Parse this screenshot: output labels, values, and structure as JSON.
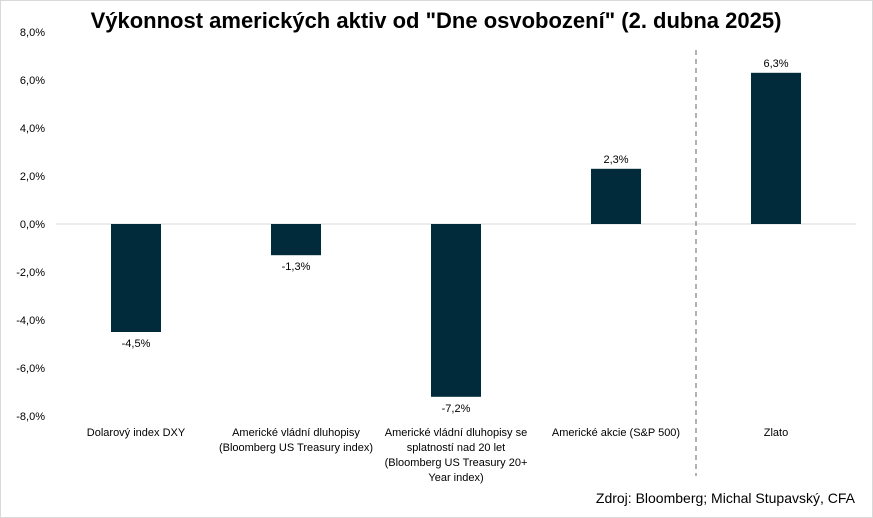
{
  "chart_data": {
    "type": "bar",
    "title": "Výkonnost amerických aktiv od \"Dne osvobození\" (2. dubna 2025)",
    "categories": [
      [
        "Dolarový index DXY"
      ],
      [
        "Americké vládní dluhopisy",
        "(Bloomberg US Treasury index)"
      ],
      [
        "Americké vládní dluhopisy se",
        "splatností nad 20 let",
        "(Bloomberg US Treasury 20+",
        "Year index)"
      ],
      [
        "Americké akcie (S&P 500)"
      ],
      [
        "Zlato"
      ]
    ],
    "values": [
      -4.5,
      -1.3,
      -7.2,
      2.3,
      6.3
    ],
    "value_labels": [
      "-4,5%",
      "-1,3%",
      "-7,2%",
      "2,3%",
      "6,3%"
    ],
    "ylim": [
      -8,
      8
    ],
    "yticks": [
      8,
      6,
      4,
      2,
      0,
      -2,
      -4,
      -6,
      -8
    ],
    "ytick_labels": [
      "8,0%",
      "6,0%",
      "4,0%",
      "2,0%",
      "0,0%",
      "-2,0%",
      "-4,0%",
      "-6,0%",
      "-8,0%"
    ],
    "bar_color": "#012b3a",
    "separator": "dashed vertical line between 4th and 5th category",
    "grid": false,
    "legend": "none"
  },
  "source": "Zdroj: Bloomberg; Michal Stupavský, CFA"
}
